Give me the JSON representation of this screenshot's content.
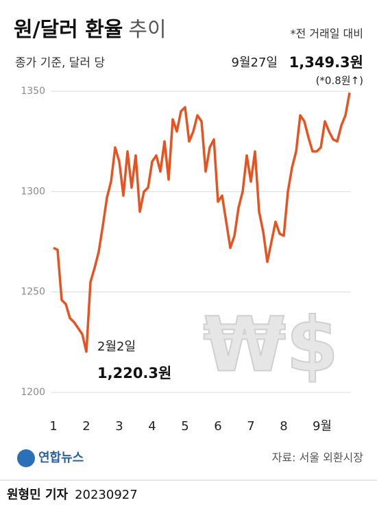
{
  "chart_data": {
    "type": "line",
    "title": "원/달러 환율",
    "title_suffix": "추이",
    "subtitle": "종가 기준, 달러 당",
    "note": "*전 거래일 대비",
    "annotations": [
      "2월2일",
      "9월27일",
      "(*0.8원↑)"
    ],
    "symbol": "₩$",
    "source": "자료: 서울 외환시장",
    "logo": "연합뉴스",
    "byline": "원형민 기자",
    "date": "20230927",
    "color": "#e9511f",
    "ylim": [
      1200,
      1350
    ],
    "yticks": [
      1200,
      1250,
      1300,
      1350
    ],
    "grid": true,
    "categories": [
      "1",
      null,
      null,
      null,
      null,
      null,
      null,
      null,
      "2",
      null,
      null,
      null,
      null,
      null,
      null,
      null,
      "3",
      null,
      null,
      null,
      null,
      null,
      null,
      null,
      "4",
      null,
      null,
      null,
      null,
      null,
      null,
      null,
      "5",
      null,
      null,
      null,
      null,
      null,
      null,
      null,
      "6",
      null,
      null,
      null,
      null,
      null,
      null,
      null,
      "7",
      null,
      null,
      null,
      null,
      null,
      null,
      null,
      "8",
      null,
      null,
      null,
      null,
      null,
      null,
      null,
      "9월",
      null,
      null,
      null,
      null,
      null,
      null,
      null,
      null
    ],
    "values": [
      1272,
      1271,
      1246,
      1244,
      1237,
      1235,
      1232,
      1229,
      1220.3,
      1255,
      1262,
      1270,
      1283,
      1297,
      1305,
      1322,
      1315,
      1298,
      1320,
      1302,
      1318,
      1290,
      1300,
      1302,
      1315,
      1318,
      1310,
      1325,
      1306,
      1336,
      1330,
      1340,
      1342,
      1325,
      1330,
      1338,
      1335,
      1310,
      1322,
      1326,
      1295,
      1298,
      1285,
      1272,
      1278,
      1292,
      1300,
      1318,
      1305,
      1320,
      1290,
      1280,
      1265,
      1275,
      1285,
      1279,
      1278,
      1300,
      1312,
      1320,
      1338,
      1335,
      1327,
      1320,
      1320,
      1322,
      1335,
      1330,
      1326,
      1325,
      1333,
      1338,
      1349.3
    ],
    "value_labels": [
      null,
      null,
      null,
      null,
      null,
      null,
      null,
      null,
      "1,220.3원",
      null,
      null,
      null,
      null,
      null,
      null,
      null,
      null,
      null,
      null,
      null,
      null,
      null,
      null,
      null,
      null,
      null,
      null,
      null,
      null,
      null,
      null,
      null,
      null,
      null,
      null,
      null,
      null,
      null,
      null,
      null,
      null,
      null,
      null,
      null,
      null,
      null,
      null,
      null,
      null,
      null,
      null,
      null,
      null,
      null,
      null,
      null,
      null,
      null,
      null,
      null,
      null,
      null,
      null,
      null,
      null,
      null,
      null,
      null,
      null,
      null,
      null,
      null,
      "1,349.3원"
    ]
  }
}
